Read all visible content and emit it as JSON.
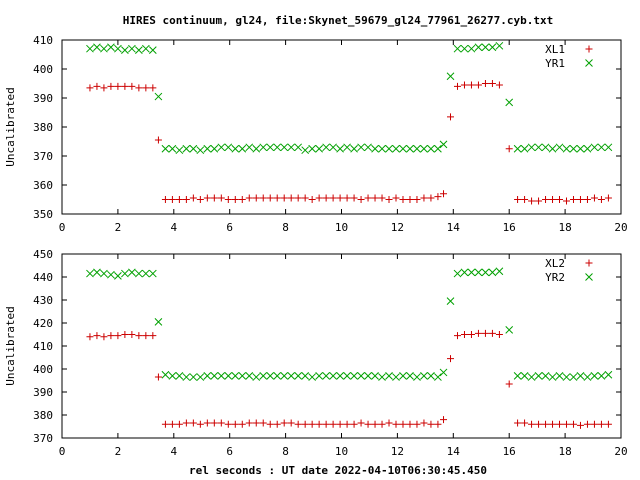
{
  "chart_data": [
    {
      "type": "scatter",
      "title": "HIRES continuum, gl24, file:Skynet_59679_gl24_77961_26277.cyb.txt",
      "xlabel": "",
      "ylabel": "Uncalibrated",
      "xlim": [
        0,
        20
      ],
      "ylim": [
        350,
        410
      ],
      "xticks": [
        0,
        2,
        4,
        6,
        8,
        10,
        12,
        14,
        16,
        18,
        20
      ],
      "yticks": [
        350,
        360,
        370,
        380,
        390,
        400,
        410
      ],
      "grid": false,
      "legend": "top-right",
      "series": [
        {
          "name": "XL1",
          "marker": "plus",
          "color": "#cc0000",
          "x": [
            1.0,
            1.25,
            1.5,
            1.75,
            2.0,
            2.25,
            2.5,
            2.75,
            3.0,
            3.25,
            3.45,
            3.7,
            3.95,
            4.2,
            4.45,
            4.7,
            4.95,
            5.2,
            5.45,
            5.7,
            5.95,
            6.2,
            6.45,
            6.7,
            6.95,
            7.2,
            7.45,
            7.7,
            7.95,
            8.2,
            8.45,
            8.7,
            8.95,
            9.2,
            9.45,
            9.7,
            9.95,
            10.2,
            10.45,
            10.7,
            10.95,
            11.2,
            11.45,
            11.7,
            11.95,
            12.2,
            12.45,
            12.7,
            12.95,
            13.2,
            13.45,
            13.65,
            13.9,
            14.15,
            14.4,
            14.65,
            14.9,
            15.15,
            15.4,
            15.65,
            16.0,
            16.3,
            16.55,
            16.8,
            17.05,
            17.3,
            17.55,
            17.8,
            18.05,
            18.3,
            18.55,
            18.8,
            19.05,
            19.3,
            19.55
          ],
          "y": [
            393.5,
            394.0,
            393.5,
            394.0,
            394.0,
            394.0,
            394.0,
            393.5,
            393.5,
            393.5,
            375.5,
            355.0,
            355.0,
            355.0,
            355.0,
            355.5,
            355.0,
            355.5,
            355.5,
            355.5,
            355.0,
            355.0,
            355.0,
            355.5,
            355.5,
            355.5,
            355.5,
            355.5,
            355.5,
            355.5,
            355.5,
            355.5,
            355.0,
            355.5,
            355.5,
            355.5,
            355.5,
            355.5,
            355.5,
            355.0,
            355.5,
            355.5,
            355.5,
            355.0,
            355.5,
            355.0,
            355.0,
            355.0,
            355.5,
            355.5,
            356.0,
            357.0,
            383.5,
            394.0,
            394.5,
            394.5,
            394.5,
            395.0,
            395.0,
            394.5,
            372.5,
            355.0,
            355.0,
            354.5,
            354.5,
            355.0,
            355.0,
            355.0,
            354.5,
            355.0,
            355.0,
            355.0,
            355.5,
            355.0,
            355.5
          ]
        },
        {
          "name": "YR1",
          "marker": "cross",
          "color": "#00a000",
          "x": [
            1.0,
            1.25,
            1.5,
            1.75,
            2.0,
            2.25,
            2.5,
            2.75,
            3.0,
            3.25,
            3.45,
            3.7,
            3.95,
            4.2,
            4.45,
            4.7,
            4.95,
            5.2,
            5.45,
            5.7,
            5.95,
            6.2,
            6.45,
            6.7,
            6.95,
            7.2,
            7.45,
            7.7,
            7.95,
            8.2,
            8.45,
            8.7,
            8.95,
            9.2,
            9.45,
            9.7,
            9.95,
            10.2,
            10.45,
            10.7,
            10.95,
            11.2,
            11.45,
            11.7,
            11.95,
            12.2,
            12.45,
            12.7,
            12.95,
            13.2,
            13.45,
            13.65,
            13.9,
            14.15,
            14.4,
            14.65,
            14.9,
            15.15,
            15.4,
            15.65,
            16.0,
            16.3,
            16.55,
            16.8,
            17.05,
            17.3,
            17.55,
            17.8,
            18.05,
            18.3,
            18.55,
            18.8,
            19.05,
            19.3,
            19.55
          ],
          "y": [
            407.0,
            407.5,
            407.0,
            407.5,
            407.0,
            406.5,
            407.0,
            406.5,
            407.0,
            406.5,
            390.5,
            372.5,
            372.5,
            372.0,
            372.5,
            372.5,
            372.0,
            372.5,
            372.5,
            373.0,
            373.0,
            372.5,
            372.5,
            373.0,
            372.5,
            373.0,
            373.0,
            373.0,
            373.0,
            373.0,
            373.0,
            372.0,
            372.5,
            372.5,
            373.0,
            373.0,
            372.5,
            373.0,
            372.5,
            373.0,
            373.0,
            372.5,
            372.5,
            372.5,
            372.5,
            372.5,
            372.5,
            372.5,
            372.5,
            372.5,
            372.5,
            374.0,
            397.5,
            407.0,
            407.0,
            407.0,
            407.5,
            407.5,
            407.5,
            408.0,
            388.5,
            372.5,
            372.5,
            373.0,
            373.0,
            373.0,
            372.5,
            373.0,
            372.5,
            372.5,
            372.5,
            372.5,
            373.0,
            373.0,
            373.0
          ]
        }
      ]
    },
    {
      "type": "scatter",
      "title": "",
      "xlabel": "rel seconds : UT date 2022-04-10T06:30:45.450",
      "ylabel": "Uncalibrated",
      "xlim": [
        0,
        20
      ],
      "ylim": [
        370,
        450
      ],
      "xticks": [
        0,
        2,
        4,
        6,
        8,
        10,
        12,
        14,
        16,
        18,
        20
      ],
      "yticks": [
        370,
        380,
        390,
        400,
        410,
        420,
        430,
        440,
        450
      ],
      "grid": false,
      "legend": "top-right",
      "series": [
        {
          "name": "XL2",
          "marker": "plus",
          "color": "#cc0000",
          "x": [
            1.0,
            1.25,
            1.5,
            1.75,
            2.0,
            2.25,
            2.5,
            2.75,
            3.0,
            3.25,
            3.45,
            3.7,
            3.95,
            4.2,
            4.45,
            4.7,
            4.95,
            5.2,
            5.45,
            5.7,
            5.95,
            6.2,
            6.45,
            6.7,
            6.95,
            7.2,
            7.45,
            7.7,
            7.95,
            8.2,
            8.45,
            8.7,
            8.95,
            9.2,
            9.45,
            9.7,
            9.95,
            10.2,
            10.45,
            10.7,
            10.95,
            11.2,
            11.45,
            11.7,
            11.95,
            12.2,
            12.45,
            12.7,
            12.95,
            13.2,
            13.45,
            13.65,
            13.9,
            14.15,
            14.4,
            14.65,
            14.9,
            15.15,
            15.4,
            15.65,
            16.0,
            16.3,
            16.55,
            16.8,
            17.05,
            17.3,
            17.55,
            17.8,
            18.05,
            18.3,
            18.55,
            18.8,
            19.05,
            19.3,
            19.55
          ],
          "y": [
            414.0,
            414.5,
            414.0,
            414.5,
            414.5,
            415.0,
            415.0,
            414.5,
            414.5,
            414.5,
            396.5,
            376.0,
            376.0,
            376.0,
            376.5,
            376.5,
            376.0,
            376.5,
            376.5,
            376.5,
            376.0,
            376.0,
            376.0,
            376.5,
            376.5,
            376.5,
            376.0,
            376.0,
            376.5,
            376.5,
            376.0,
            376.0,
            376.0,
            376.0,
            376.0,
            376.0,
            376.0,
            376.0,
            376.0,
            376.5,
            376.0,
            376.0,
            376.0,
            376.5,
            376.0,
            376.0,
            376.0,
            376.0,
            376.5,
            376.0,
            376.0,
            378.0,
            404.5,
            414.5,
            415.0,
            415.0,
            415.5,
            415.5,
            415.5,
            415.0,
            393.5,
            376.5,
            376.5,
            376.0,
            376.0,
            376.0,
            376.0,
            376.0,
            376.0,
            376.0,
            375.5,
            376.0,
            376.0,
            376.0,
            376.0
          ]
        },
        {
          "name": "YR2",
          "marker": "cross",
          "color": "#00a000",
          "x": [
            1.0,
            1.25,
            1.5,
            1.75,
            2.0,
            2.25,
            2.5,
            2.75,
            3.0,
            3.25,
            3.45,
            3.7,
            3.95,
            4.2,
            4.45,
            4.7,
            4.95,
            5.2,
            5.45,
            5.7,
            5.95,
            6.2,
            6.45,
            6.7,
            6.95,
            7.2,
            7.45,
            7.7,
            7.95,
            8.2,
            8.45,
            8.7,
            8.95,
            9.2,
            9.45,
            9.7,
            9.95,
            10.2,
            10.45,
            10.7,
            10.95,
            11.2,
            11.45,
            11.7,
            11.95,
            12.2,
            12.45,
            12.7,
            12.95,
            13.2,
            13.45,
            13.65,
            13.9,
            14.15,
            14.4,
            14.65,
            14.9,
            15.15,
            15.4,
            15.65,
            16.0,
            16.3,
            16.55,
            16.8,
            17.05,
            17.3,
            17.55,
            17.8,
            18.05,
            18.3,
            18.55,
            18.8,
            19.05,
            19.3,
            19.55
          ],
          "y": [
            441.5,
            442.0,
            441.5,
            441.0,
            440.5,
            441.5,
            442.0,
            441.5,
            441.5,
            441.5,
            420.5,
            397.5,
            397.0,
            397.0,
            396.5,
            396.5,
            396.5,
            397.0,
            397.0,
            397.0,
            397.0,
            397.0,
            397.0,
            397.0,
            396.5,
            397.0,
            397.0,
            397.0,
            397.0,
            397.0,
            397.0,
            397.0,
            396.5,
            397.0,
            397.0,
            397.0,
            397.0,
            397.0,
            397.0,
            397.0,
            397.0,
            397.0,
            396.5,
            397.0,
            396.5,
            397.0,
            397.0,
            396.5,
            397.0,
            397.0,
            396.5,
            398.5,
            429.5,
            441.5,
            442.0,
            442.0,
            442.0,
            442.0,
            442.0,
            442.5,
            417.0,
            397.0,
            397.0,
            396.5,
            397.0,
            397.0,
            396.5,
            397.0,
            396.5,
            396.5,
            397.0,
            396.5,
            397.0,
            397.0,
            397.5
          ]
        }
      ]
    }
  ]
}
